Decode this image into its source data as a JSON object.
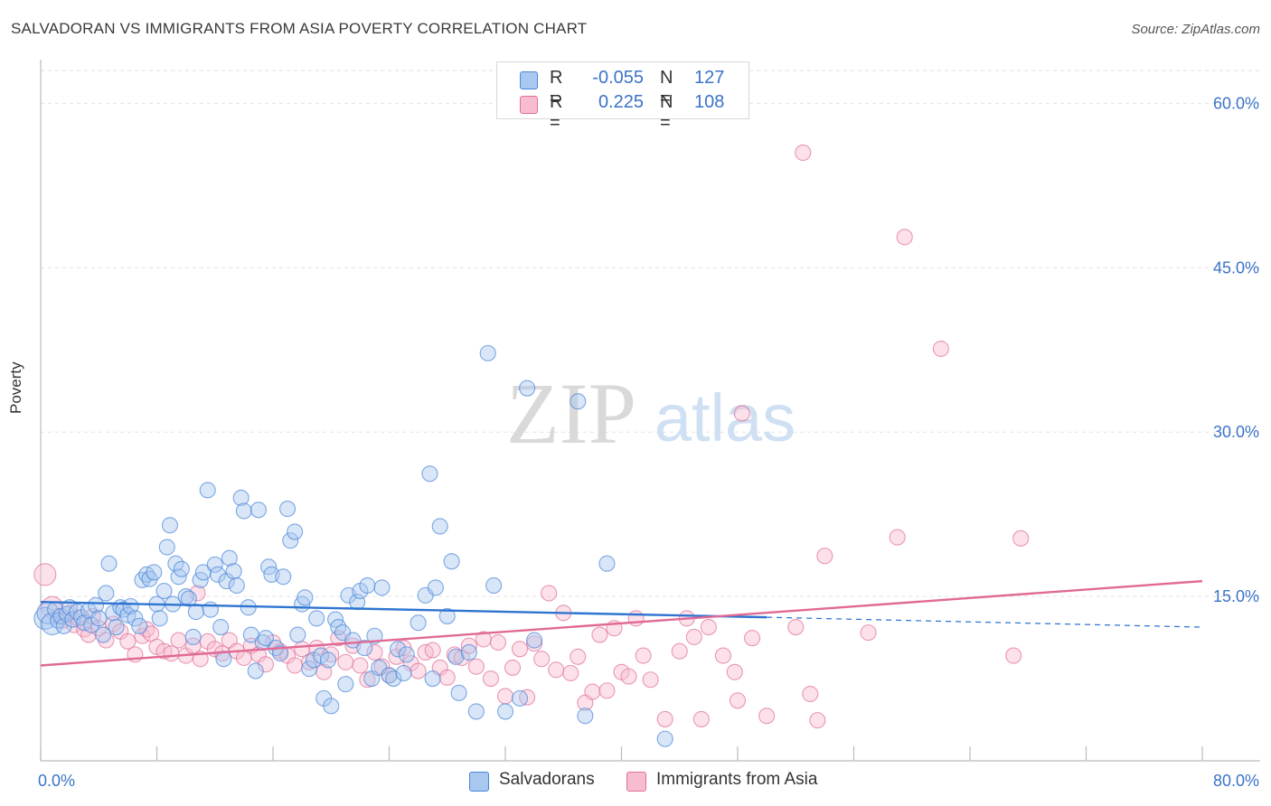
{
  "title": "SALVADORAN VS IMMIGRANTS FROM ASIA POVERTY CORRELATION CHART",
  "source": "Source: ZipAtlas.com",
  "watermark": {
    "zip": "ZIP",
    "atlas": "atlas"
  },
  "legend_top": [
    {
      "r_label": "R =",
      "r_value": "-0.055",
      "n_label": "N =",
      "n_value": "127",
      "color": "#a8c8f0"
    },
    {
      "r_label": "R =",
      "r_value": "0.225",
      "n_label": "N =",
      "n_value": "108",
      "color": "#f8bcd0"
    }
  ],
  "chart_data": {
    "type": "scatter",
    "title": "SALVADORAN VS IMMIGRANTS FROM ASIA POVERTY CORRELATION CHART",
    "xlabel": "",
    "ylabel": "Poverty",
    "xlim": [
      0,
      80
    ],
    "ylim": [
      0,
      63
    ],
    "x_tick_labels": [
      "0.0%",
      "80.0%"
    ],
    "y_ticks": [
      15,
      30,
      45,
      60
    ],
    "y_tick_labels": [
      "15.0%",
      "30.0%",
      "45.0%",
      "60.0%"
    ],
    "grid": true,
    "series": [
      {
        "name": "Salvadorans",
        "color": "#4a86d8",
        "fill": "#a8c8f0",
        "r": -0.055,
        "n": 127,
        "trend": {
          "x": [
            0,
            50,
            80
          ],
          "y": [
            14.5,
            13.1,
            12.2
          ],
          "solid_until": 50
        },
        "points": [
          [
            0.3,
            13
          ],
          [
            0.5,
            13.5
          ],
          [
            0.8,
            12.5
          ],
          [
            1.0,
            13.8
          ],
          [
            1.2,
            12.8
          ],
          [
            1.4,
            13.2
          ],
          [
            1.6,
            12.3
          ],
          [
            1.8,
            13.4
          ],
          [
            2.0,
            14.0
          ],
          [
            2.2,
            12.9
          ],
          [
            2.5,
            13.6
          ],
          [
            2.8,
            13.1
          ],
          [
            3.0,
            12.6
          ],
          [
            3.3,
            13.7
          ],
          [
            3.5,
            12.4
          ],
          [
            3.8,
            14.2
          ],
          [
            4.0,
            13.0
          ],
          [
            4.3,
            11.5
          ],
          [
            4.5,
            15.3
          ],
          [
            4.7,
            18.0
          ],
          [
            5.0,
            13.5
          ],
          [
            5.2,
            12.2
          ],
          [
            5.5,
            14.0
          ],
          [
            5.7,
            13.8
          ],
          [
            6.0,
            13.3
          ],
          [
            6.2,
            14.1
          ],
          [
            6.5,
            13.0
          ],
          [
            6.8,
            12.3
          ],
          [
            7.0,
            16.5
          ],
          [
            7.3,
            17.0
          ],
          [
            7.5,
            16.6
          ],
          [
            7.8,
            17.2
          ],
          [
            8.0,
            14.3
          ],
          [
            8.2,
            13.0
          ],
          [
            8.5,
            15.5
          ],
          [
            8.7,
            19.5
          ],
          [
            8.9,
            21.5
          ],
          [
            9.1,
            14.3
          ],
          [
            9.3,
            18.0
          ],
          [
            9.5,
            16.8
          ],
          [
            9.7,
            17.5
          ],
          [
            10.0,
            15.0
          ],
          [
            10.2,
            14.8
          ],
          [
            10.5,
            11.3
          ],
          [
            10.7,
            13.6
          ],
          [
            11.0,
            16.5
          ],
          [
            11.2,
            17.2
          ],
          [
            11.5,
            24.7
          ],
          [
            11.7,
            13.8
          ],
          [
            12.0,
            17.9
          ],
          [
            12.2,
            17.0
          ],
          [
            12.4,
            12.2
          ],
          [
            12.6,
            9.3
          ],
          [
            12.8,
            16.4
          ],
          [
            13.0,
            18.5
          ],
          [
            13.3,
            17.3
          ],
          [
            13.5,
            16.0
          ],
          [
            13.8,
            24.0
          ],
          [
            14.0,
            22.8
          ],
          [
            14.3,
            14.0
          ],
          [
            14.5,
            11.5
          ],
          [
            14.8,
            8.2
          ],
          [
            15.0,
            22.9
          ],
          [
            15.3,
            10.8
          ],
          [
            15.5,
            11.2
          ],
          [
            15.7,
            17.7
          ],
          [
            15.9,
            17.0
          ],
          [
            16.2,
            10.3
          ],
          [
            16.5,
            9.8
          ],
          [
            16.7,
            16.8
          ],
          [
            17.0,
            23.0
          ],
          [
            17.2,
            20.1
          ],
          [
            17.5,
            20.9
          ],
          [
            17.7,
            11.5
          ],
          [
            18.0,
            14.3
          ],
          [
            18.2,
            14.9
          ],
          [
            18.5,
            8.4
          ],
          [
            18.8,
            9.2
          ],
          [
            19.0,
            13.0
          ],
          [
            19.3,
            9.6
          ],
          [
            19.5,
            5.7
          ],
          [
            19.8,
            9.2
          ],
          [
            20.0,
            5.0
          ],
          [
            20.3,
            12.9
          ],
          [
            20.5,
            12.2
          ],
          [
            20.8,
            11.7
          ],
          [
            21.0,
            7.0
          ],
          [
            21.2,
            15.1
          ],
          [
            21.5,
            11.0
          ],
          [
            21.8,
            14.5
          ],
          [
            22.0,
            15.5
          ],
          [
            22.3,
            10.3
          ],
          [
            22.5,
            16.0
          ],
          [
            22.8,
            7.5
          ],
          [
            23.0,
            11.4
          ],
          [
            23.3,
            8.5
          ],
          [
            23.5,
            15.8
          ],
          [
            24.0,
            7.8
          ],
          [
            24.3,
            7.5
          ],
          [
            24.6,
            10.2
          ],
          [
            25.0,
            8.0
          ],
          [
            25.2,
            9.7
          ],
          [
            26.0,
            12.6
          ],
          [
            26.5,
            15.1
          ],
          [
            26.8,
            26.2
          ],
          [
            27.0,
            7.5
          ],
          [
            27.2,
            15.8
          ],
          [
            27.5,
            21.4
          ],
          [
            28.0,
            13.2
          ],
          [
            28.3,
            18.2
          ],
          [
            28.6,
            9.5
          ],
          [
            28.8,
            6.2
          ],
          [
            29.5,
            9.9
          ],
          [
            30.0,
            4.5
          ],
          [
            30.8,
            37.2
          ],
          [
            31.2,
            16.0
          ],
          [
            32.0,
            4.5
          ],
          [
            33.0,
            5.7
          ],
          [
            33.5,
            34.0
          ],
          [
            34.0,
            11.0
          ],
          [
            37.0,
            32.8
          ],
          [
            37.5,
            4.1
          ],
          [
            39.0,
            18.0
          ],
          [
            43.0,
            2.0
          ]
        ]
      },
      {
        "name": "Immigrants from Asia",
        "color": "#e07098",
        "fill": "#f8bcd0",
        "r": 0.225,
        "n": 108,
        "trend": {
          "x": [
            0,
            80
          ],
          "y": [
            8.7,
            16.4
          ]
        },
        "points": [
          [
            0.3,
            17.0
          ],
          [
            0.8,
            14.0
          ],
          [
            1.2,
            13.2
          ],
          [
            1.5,
            12.8
          ],
          [
            2.0,
            13.5
          ],
          [
            2.3,
            12.4
          ],
          [
            2.6,
            13.0
          ],
          [
            3.0,
            12.0
          ],
          [
            3.3,
            11.5
          ],
          [
            3.6,
            13.2
          ],
          [
            4.0,
            12.1
          ],
          [
            4.5,
            11.0
          ],
          [
            5.0,
            12.5
          ],
          [
            5.5,
            11.8
          ],
          [
            6.0,
            10.9
          ],
          [
            6.5,
            9.7
          ],
          [
            7.0,
            11.4
          ],
          [
            7.3,
            12.0
          ],
          [
            7.6,
            11.6
          ],
          [
            8.0,
            10.4
          ],
          [
            8.5,
            10.0
          ],
          [
            9.0,
            9.8
          ],
          [
            9.5,
            11.0
          ],
          [
            10.0,
            9.6
          ],
          [
            10.5,
            10.5
          ],
          [
            10.8,
            15.3
          ],
          [
            11.0,
            9.3
          ],
          [
            11.5,
            10.9
          ],
          [
            12.0,
            10.2
          ],
          [
            12.5,
            9.8
          ],
          [
            13.0,
            11.0
          ],
          [
            13.5,
            10.0
          ],
          [
            14.0,
            9.4
          ],
          [
            14.5,
            10.5
          ],
          [
            15.0,
            9.7
          ],
          [
            15.5,
            8.8
          ],
          [
            16.0,
            10.8
          ],
          [
            16.5,
            10.0
          ],
          [
            17.0,
            9.6
          ],
          [
            17.5,
            8.7
          ],
          [
            18.0,
            10.2
          ],
          [
            18.5,
            9.0
          ],
          [
            19.0,
            10.3
          ],
          [
            19.5,
            8.1
          ],
          [
            20.0,
            9.7
          ],
          [
            20.5,
            11.2
          ],
          [
            21.0,
            9.0
          ],
          [
            21.5,
            10.5
          ],
          [
            22.0,
            8.7
          ],
          [
            22.5,
            7.4
          ],
          [
            23.0,
            9.9
          ],
          [
            23.5,
            8.6
          ],
          [
            24.0,
            7.8
          ],
          [
            24.5,
            9.5
          ],
          [
            25.0,
            10.3
          ],
          [
            25.5,
            8.9
          ],
          [
            26.0,
            8.2
          ],
          [
            26.5,
            9.9
          ],
          [
            27.0,
            10.1
          ],
          [
            27.5,
            8.5
          ],
          [
            28.0,
            7.6
          ],
          [
            28.5,
            9.7
          ],
          [
            29.0,
            9.4
          ],
          [
            29.5,
            10.5
          ],
          [
            30.0,
            8.6
          ],
          [
            30.5,
            11.1
          ],
          [
            31.0,
            7.5
          ],
          [
            31.5,
            10.8
          ],
          [
            32.0,
            5.9
          ],
          [
            32.5,
            8.5
          ],
          [
            33.0,
            10.2
          ],
          [
            33.5,
            5.8
          ],
          [
            34.0,
            10.7
          ],
          [
            34.5,
            9.3
          ],
          [
            35.0,
            15.3
          ],
          [
            35.5,
            8.3
          ],
          [
            36.0,
            13.5
          ],
          [
            36.5,
            8.0
          ],
          [
            37.0,
            9.5
          ],
          [
            37.5,
            5.3
          ],
          [
            38.0,
            6.3
          ],
          [
            38.5,
            11.5
          ],
          [
            39.0,
            6.4
          ],
          [
            39.5,
            12.1
          ],
          [
            40.0,
            8.1
          ],
          [
            40.5,
            7.7
          ],
          [
            41.0,
            13.0
          ],
          [
            41.5,
            9.6
          ],
          [
            42.0,
            7.4
          ],
          [
            43.0,
            3.8
          ],
          [
            44.0,
            10.0
          ],
          [
            44.5,
            13.0
          ],
          [
            45.0,
            11.3
          ],
          [
            45.5,
            3.8
          ],
          [
            46.0,
            12.2
          ],
          [
            47.0,
            9.6
          ],
          [
            47.8,
            8.1
          ],
          [
            48.0,
            5.5
          ],
          [
            48.3,
            31.7
          ],
          [
            49.0,
            11.2
          ],
          [
            50.0,
            4.1
          ],
          [
            52.0,
            12.2
          ],
          [
            52.5,
            55.5
          ],
          [
            53.0,
            6.1
          ],
          [
            53.5,
            3.7
          ],
          [
            54.0,
            18.7
          ],
          [
            57.0,
            11.7
          ],
          [
            59.0,
            20.4
          ],
          [
            59.5,
            47.8
          ],
          [
            62.0,
            37.6
          ],
          [
            67.0,
            9.6
          ],
          [
            67.5,
            20.3
          ]
        ]
      }
    ]
  },
  "legend_bottom": [
    {
      "label": "Salvadorans",
      "color": "#a8c8f0",
      "border": "#4a86d8"
    },
    {
      "label": "Immigrants from Asia",
      "color": "#f8bcd0",
      "border": "#e07098"
    }
  ]
}
